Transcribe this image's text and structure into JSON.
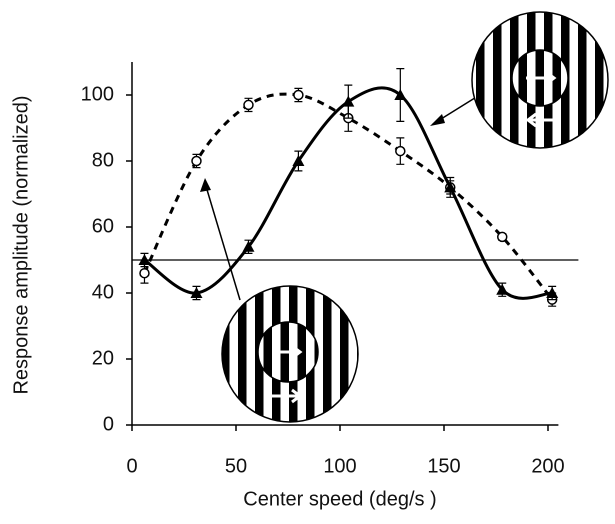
{
  "chart_data": {
    "type": "line",
    "x_label": "Center speed (deg/s )",
    "y_label": "Response amplitude (normalized)",
    "x": [
      6,
      31,
      56,
      80,
      104,
      129,
      153,
      178,
      202
    ],
    "series": [
      {
        "color": "#000000",
        "dashed": true,
        "marker": "circle",
        "values": [
          46,
          80,
          97,
          100,
          93,
          83,
          72,
          57,
          38
        ],
        "errors": [
          3,
          2,
          2,
          2,
          4,
          4,
          2,
          1,
          2
        ]
      },
      {
        "color": "#000000",
        "dashed": false,
        "marker": "triangle",
        "values": [
          50,
          40,
          54,
          80,
          98,
          100,
          72,
          41,
          40
        ],
        "errors": [
          2,
          2,
          2,
          3,
          5,
          8,
          3,
          2,
          2
        ]
      }
    ],
    "hline": 50,
    "xlim": [
      0,
      205
    ],
    "xticks": [
      0,
      50,
      100,
      150,
      200
    ],
    "ylim": [
      0,
      110
    ],
    "yticks": [
      0,
      20,
      40,
      60,
      80,
      100
    ]
  }
}
